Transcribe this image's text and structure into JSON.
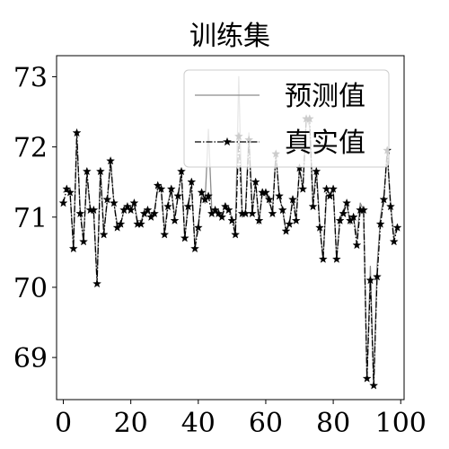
{
  "chart_data": {
    "type": "line",
    "title": "训练集",
    "xlabel": "",
    "ylabel": "",
    "xlim": [
      -2,
      101
    ],
    "ylim": [
      68.4,
      73.3
    ],
    "xticks": [
      0,
      20,
      40,
      60,
      80,
      100
    ],
    "yticks": [
      69,
      70,
      71,
      72,
      73
    ],
    "grid": false,
    "legend_position": "top-right",
    "series": [
      {
        "name": "预测值",
        "color": "#8c8c8c",
        "style": "solid",
        "marker": "none",
        "values": [
          71.35,
          71.4,
          71.35,
          70.6,
          72.1,
          71.1,
          70.7,
          71.6,
          71.1,
          71.05,
          70.1,
          71.7,
          70.8,
          71.2,
          71.8,
          71.2,
          70.9,
          70.9,
          71.1,
          71.15,
          71.1,
          71.2,
          70.95,
          70.95,
          71.05,
          71.1,
          71.0,
          71.1,
          71.4,
          71.4,
          70.8,
          71.2,
          71.4,
          71.0,
          71.3,
          71.6,
          70.7,
          71.2,
          71.4,
          70.6,
          70.9,
          71.3,
          71.2,
          72.25,
          71.1,
          71.1,
          71.1,
          71.0,
          71.2,
          71.1,
          71.0,
          70.8,
          73.0,
          71.0,
          71.1,
          72.2,
          71.1,
          71.5,
          70.9,
          71.4,
          71.3,
          71.2,
          71.1,
          71.9,
          71.3,
          71.1,
          70.8,
          70.9,
          71.3,
          71.0,
          71.7,
          71.4,
          72.4,
          72.3,
          71.2,
          71.7,
          70.9,
          70.4,
          71.3,
          71.3,
          71.4,
          70.4,
          71.0,
          71.1,
          71.2,
          70.9,
          71.0,
          70.7,
          71.2,
          71.1,
          68.7,
          70.3,
          68.6,
          70.3,
          71.0,
          71.3,
          71.9,
          71.2,
          70.7,
          70.9
        ]
      },
      {
        "name": "真实值",
        "color": "#000000",
        "style": "dashdot",
        "marker": "star",
        "values": [
          71.2,
          71.4,
          71.35,
          70.55,
          72.2,
          71.05,
          70.65,
          71.65,
          71.1,
          71.1,
          70.05,
          71.65,
          70.75,
          71.25,
          71.8,
          71.2,
          70.85,
          70.9,
          71.1,
          71.15,
          71.1,
          71.2,
          70.9,
          70.9,
          71.05,
          71.1,
          71.0,
          71.05,
          71.45,
          71.4,
          70.75,
          71.15,
          71.4,
          70.95,
          71.3,
          71.65,
          70.7,
          71.15,
          71.5,
          70.55,
          70.85,
          71.35,
          71.25,
          71.3,
          71.05,
          71.1,
          71.05,
          71.0,
          71.15,
          71.1,
          70.95,
          70.75,
          72.15,
          71.05,
          71.05,
          72.1,
          71.05,
          71.5,
          70.95,
          71.35,
          71.35,
          71.25,
          71.05,
          71.9,
          71.3,
          71.1,
          70.8,
          70.9,
          71.25,
          70.95,
          71.7,
          71.4,
          72.4,
          72.4,
          71.15,
          71.65,
          70.85,
          70.4,
          71.4,
          71.3,
          71.4,
          70.4,
          70.95,
          71.05,
          71.2,
          70.95,
          71.0,
          70.6,
          71.1,
          71.1,
          68.7,
          70.1,
          68.6,
          70.15,
          70.9,
          71.25,
          71.95,
          71.15,
          70.65,
          70.85
        ]
      }
    ]
  }
}
